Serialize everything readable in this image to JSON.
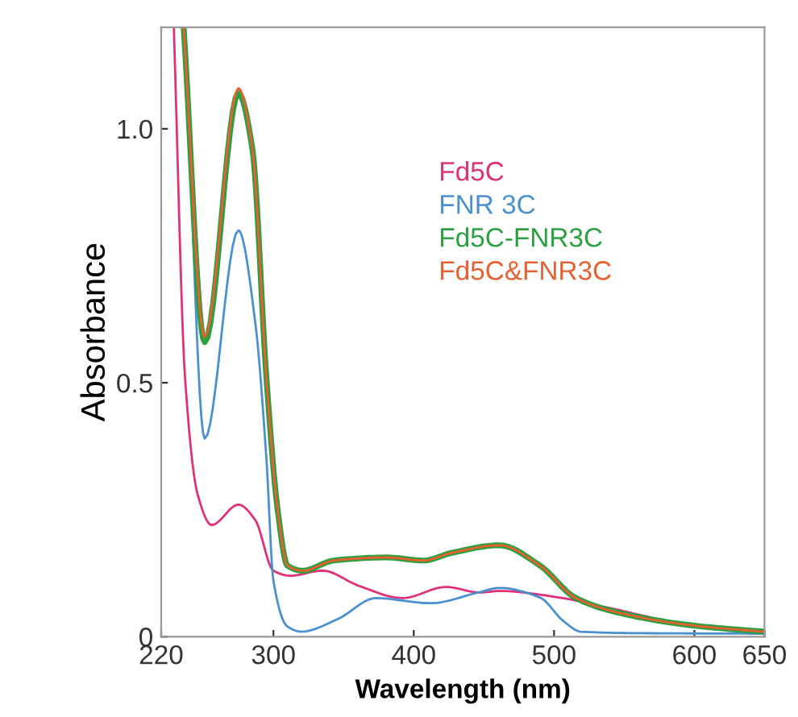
{
  "chart_data": {
    "type": "line",
    "xlabel": "Wavelength (nm)",
    "ylabel": "Absorbance",
    "xlim": [
      220,
      650
    ],
    "xticks": [
      220,
      300,
      400,
      500,
      600,
      650
    ],
    "ylim": [
      0,
      1.2
    ],
    "yticks": [
      0,
      0.5,
      {
        "value": 1.0,
        "label": "1.0"
      }
    ],
    "grid": false,
    "legend": "right",
    "marker": "none",
    "line_style": "solid",
    "series": [
      {
        "name": "Fd5C",
        "color": "#e0307a",
        "x": [
          229,
          237,
          246,
          256,
          275,
          287,
          300,
          312,
          335,
          361,
          392,
          423,
          447,
          461,
          504,
          542,
          599,
          649
        ],
        "values": [
          1.2,
          0.51,
          0.28,
          0.22,
          0.26,
          0.23,
          0.13,
          0.12,
          0.13,
          0.1,
          0.076,
          0.098,
          0.087,
          0.09,
          0.077,
          0.055,
          0.022,
          0.01
        ]
      },
      {
        "name": "FNR 3C",
        "color": "#4a90d0",
        "x": [
          237,
          251,
          275,
          287,
          295,
          300,
          310,
          320,
          346,
          373,
          412,
          446,
          461,
          490,
          507,
          519,
          560,
          649
        ],
        "values": [
          1.2,
          0.39,
          0.8,
          0.62,
          0.35,
          0.11,
          0.02,
          0.01,
          0.035,
          0.076,
          0.066,
          0.087,
          0.096,
          0.077,
          0.03,
          0.01,
          0.007,
          0.006
        ]
      },
      {
        "name": "Fd5C-FNR3C",
        "color": "#2ca040",
        "x": [
          236,
          251,
          275,
          285,
          295,
          303,
          310,
          321,
          343,
          381,
          407,
          427,
          461,
          490,
          515,
          542,
          599,
          649
        ],
        "values": [
          1.2,
          0.58,
          1.07,
          0.96,
          0.51,
          0.25,
          0.14,
          0.13,
          0.15,
          0.156,
          0.15,
          0.165,
          0.18,
          0.14,
          0.077,
          0.05,
          0.022,
          0.01
        ]
      },
      {
        "name": "Fd5C&FNR3C",
        "color": "#e86030",
        "x": [
          236,
          251,
          275,
          285,
          295,
          303,
          310,
          321,
          343,
          381,
          407,
          427,
          461,
          490,
          515,
          542,
          599,
          649
        ],
        "values": [
          1.2,
          0.59,
          1.08,
          0.96,
          0.51,
          0.25,
          0.14,
          0.13,
          0.15,
          0.156,
          0.15,
          0.165,
          0.18,
          0.14,
          0.077,
          0.05,
          0.022,
          0.01
        ]
      }
    ]
  }
}
